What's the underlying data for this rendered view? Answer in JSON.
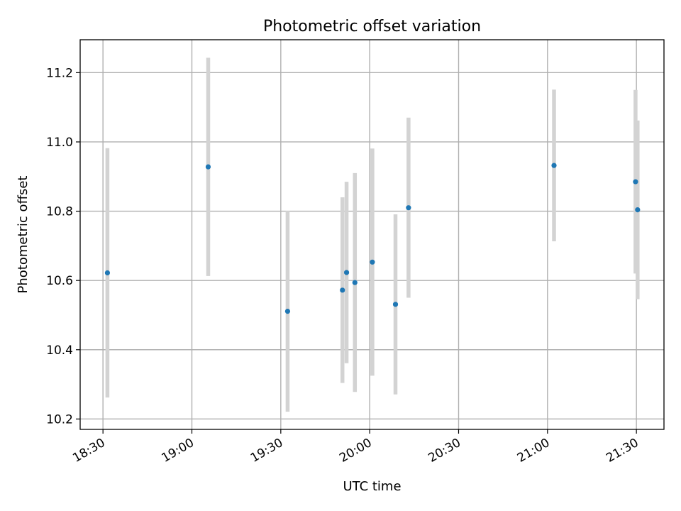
{
  "chart_data": {
    "type": "scatter",
    "title": "Photometric offset variation",
    "xlabel": "UTC time",
    "ylabel": "Photometric offset",
    "x_ticks": [
      {
        "value": 1110,
        "label": "18:30"
      },
      {
        "value": 1140,
        "label": "19:00"
      },
      {
        "value": 1170,
        "label": "19:30"
      },
      {
        "value": 1200,
        "label": "20:00"
      },
      {
        "value": 1230,
        "label": "20:30"
      },
      {
        "value": 1260,
        "label": "21:00"
      },
      {
        "value": 1290,
        "label": "21:30"
      }
    ],
    "y_ticks": [
      {
        "value": 10.2,
        "label": "10.2"
      },
      {
        "value": 10.4,
        "label": "10.4"
      },
      {
        "value": 10.6,
        "label": "10.6"
      },
      {
        "value": 10.8,
        "label": "10.8"
      },
      {
        "value": 11.0,
        "label": "11.0"
      },
      {
        "value": 11.2,
        "label": "11.2"
      }
    ],
    "xlim": [
      1102.3,
      1299.3
    ],
    "ylim": [
      10.17,
      11.295
    ],
    "grid": true,
    "x_unit": "minutes after 00:00 UTC",
    "colors": {
      "point": "#1f77b4",
      "errorbar": "#d3d3d3"
    },
    "points": [
      {
        "x": 1111.5,
        "y": 10.622,
        "yerr": 0.36
      },
      {
        "x": 1145.5,
        "y": 10.928,
        "yerr": 0.315
      },
      {
        "x": 1172.3,
        "y": 10.511,
        "yerr": 0.29
      },
      {
        "x": 1190.8,
        "y": 10.572,
        "yerr": 0.268
      },
      {
        "x": 1192.2,
        "y": 10.623,
        "yerr": 0.262
      },
      {
        "x": 1195.0,
        "y": 10.594,
        "yerr": 0.316
      },
      {
        "x": 1200.9,
        "y": 10.653,
        "yerr": 0.328
      },
      {
        "x": 1208.7,
        "y": 10.531,
        "yerr": 0.26
      },
      {
        "x": 1213.1,
        "y": 10.81,
        "yerr": 0.26
      },
      {
        "x": 1262.2,
        "y": 10.932,
        "yerr": 0.219
      },
      {
        "x": 1289.7,
        "y": 10.885,
        "yerr": 0.265
      },
      {
        "x": 1290.4,
        "y": 10.804,
        "yerr": 0.258
      }
    ]
  }
}
